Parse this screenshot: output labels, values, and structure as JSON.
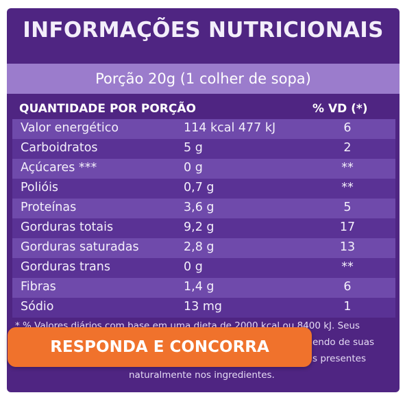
{
  "title": "INFORMAÇÕES NUTRICIONAIS",
  "portion": "Porção 20g (1 colher de sopa)",
  "header": {
    "quantity": "QUANTIDADE POR PORÇÃO",
    "vd": "% VD (*)"
  },
  "rows": [
    {
      "name": "Valor energético",
      "amount": "114 kcal  477 kJ",
      "vd": "6"
    },
    {
      "name": "Carboidratos",
      "amount": "5 g",
      "vd": "2"
    },
    {
      "name": "Açúcares ***",
      "amount": "0 g",
      "vd": "**"
    },
    {
      "name": "Polióis",
      "amount": "0,7 g",
      "vd": "**"
    },
    {
      "name": "Proteínas",
      "amount": "3,6 g",
      "vd": "5"
    },
    {
      "name": "Gorduras totais",
      "amount": "9,2 g",
      "vd": "17"
    },
    {
      "name": "Gorduras saturadas",
      "amount": "2,8 g",
      "vd": "13"
    },
    {
      "name": "Gorduras trans",
      "amount": "0 g",
      "vd": "**"
    },
    {
      "name": "Fibras",
      "amount": "1,4 g",
      "vd": "6"
    },
    {
      "name": "Sódio",
      "amount": "13 mg",
      "vd": "1"
    }
  ],
  "footnote": {
    "line1": "* % Valores diários com base em uma dieta de 2000 kcal ou 8400 kJ. Seus",
    "line2": "endo de suas",
    "line3": "s presentes",
    "line4": "naturalmente nos ingredientes."
  },
  "cta": {
    "label": "RESPONDA E CONCORRA"
  },
  "colors": {
    "panel": "#4f2582",
    "portion_band": "#9b7ccc",
    "row_light": "#6f4aab",
    "row_dark": "#5a3295",
    "cta": "#f0722c"
  }
}
